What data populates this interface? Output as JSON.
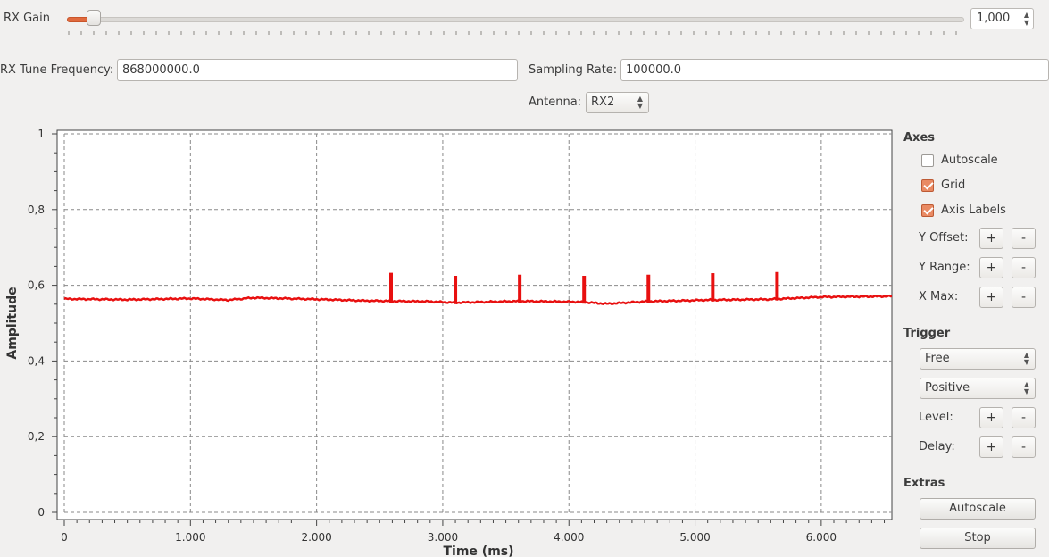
{
  "rx_gain": {
    "label": "RX Gain",
    "value": "1,000",
    "slider_fraction": 0.03
  },
  "tune": {
    "label": "RX Tune Frequency:",
    "value": "868000000.0"
  },
  "sampling": {
    "label": "Sampling Rate:",
    "value": "100000.0"
  },
  "antenna": {
    "label": "Antenna:",
    "value": "RX2"
  },
  "panel": {
    "axes_title": "Axes",
    "autoscale_check": {
      "label": "Autoscale",
      "checked": false
    },
    "grid_check": {
      "label": "Grid",
      "checked": true
    },
    "axis_labels_check": {
      "label": "Axis Labels",
      "checked": true
    },
    "y_offset_label": "Y Offset:",
    "y_range_label": "Y Range:",
    "x_max_label": "X Max:",
    "plus": "+",
    "minus": "-",
    "trigger_title": "Trigger",
    "trigger_mode": "Free",
    "trigger_slope": "Positive",
    "level_label": "Level:",
    "delay_label": "Delay:",
    "extras_title": "Extras",
    "autoscale_button": "Autoscale",
    "stop_button": "Stop"
  },
  "colors": {
    "accent": "#e06a3e",
    "trace": "#e81010"
  },
  "chart_data": {
    "type": "line",
    "xlabel": "Time (ms)",
    "ylabel": "Amplitude",
    "xlim": [
      0,
      6.56
    ],
    "ylim": [
      0,
      1
    ],
    "x_ticks": [
      0,
      1,
      2,
      3,
      4,
      5,
      6
    ],
    "x_tick_labels": [
      "0",
      "1.000",
      "2.000",
      "3.000",
      "4.000",
      "5.000",
      "6.000"
    ],
    "y_ticks": [
      0,
      0.2,
      0.4,
      0.6,
      0.8,
      1
    ],
    "y_tick_labels": [
      "0",
      "0,2",
      "0,4",
      "0,6",
      "0,8",
      "1"
    ],
    "grid": true,
    "series": [
      {
        "color": "#e81010",
        "x": [
          0,
          0.5,
          1.0,
          1.3,
          1.5,
          2.0,
          2.4,
          2.9,
          3.1,
          3.6,
          4.1,
          4.3,
          4.6,
          5.1,
          5.6,
          6.0,
          6.56
        ],
        "y": [
          0.564,
          0.562,
          0.565,
          0.561,
          0.567,
          0.563,
          0.559,
          0.557,
          0.554,
          0.558,
          0.556,
          0.551,
          0.557,
          0.561,
          0.563,
          0.569,
          0.571
        ]
      }
    ],
    "spikes": [
      {
        "x": 2.59,
        "y": 0.633
      },
      {
        "x": 3.1,
        "y": 0.625
      },
      {
        "x": 3.61,
        "y": 0.628
      },
      {
        "x": 4.12,
        "y": 0.625
      },
      {
        "x": 4.63,
        "y": 0.628
      },
      {
        "x": 5.14,
        "y": 0.632
      },
      {
        "x": 5.65,
        "y": 0.635
      }
    ]
  }
}
